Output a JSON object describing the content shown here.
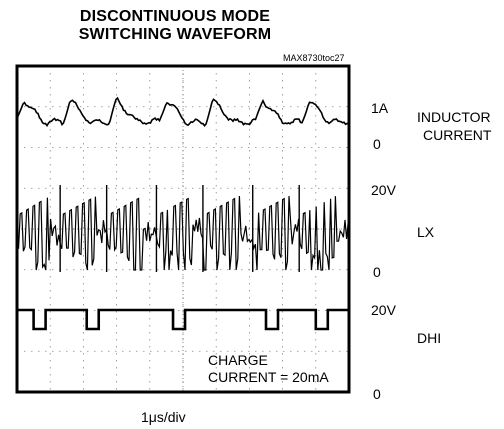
{
  "chart_data": {
    "type": "line",
    "title": "DISCONTINUOUS MODE",
    "subtitle": "SWITCHING WAVEFORM",
    "figure_tag": "MAX8730toc27",
    "xlabel": "1μs/div",
    "annotation": {
      "line1": "CHARGE",
      "line2": "CURRENT = 20mA"
    },
    "grid": true,
    "grid_divisions": {
      "x": 10,
      "y": 8
    },
    "line_color": "#000000",
    "series": [
      {
        "name": "INDUCTOR CURRENT",
        "name_lines": [
          "INDUCTOR",
          "CURRENT"
        ],
        "scale_top": "1A",
        "scale_bottom": "0",
        "peak_times_div": [
          0.2,
          1.6,
          3.0,
          4.5,
          5.9,
          7.4,
          8.8
        ],
        "peak_value": 0.5,
        "baseline_value": 0
      },
      {
        "name": "LX",
        "scale_top": "20V",
        "scale_bottom": "0",
        "burst_intervals_div": [
          [
            0.0,
            1.0
          ],
          [
            1.3,
            2.4
          ],
          [
            2.7,
            3.8
          ],
          [
            4.2,
            5.3
          ],
          [
            5.6,
            6.7
          ],
          [
            7.1,
            8.2
          ],
          [
            8.5,
            9.6
          ]
        ],
        "high_value": 20,
        "low_value": 0
      },
      {
        "name": "DHI",
        "scale_top": "20V",
        "scale_bottom": "0",
        "pulse_times_div": [
          0.5,
          2.1,
          4.7,
          7.5,
          9.0
        ],
        "high_value": 20,
        "low_value": 17
      }
    ]
  }
}
